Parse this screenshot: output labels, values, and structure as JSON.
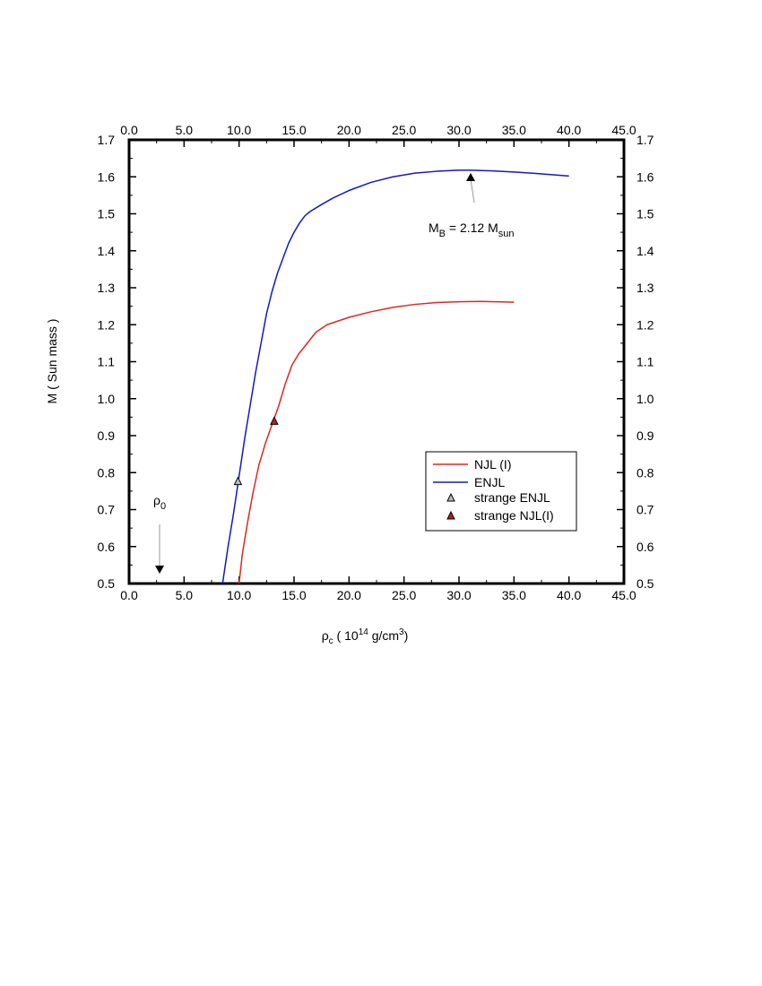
{
  "chart_data": {
    "type": "line",
    "xlabel": {
      "main": "ρ",
      "sub": "c",
      "rest": " ( 10",
      "sup": "14",
      "unit": " g/cm",
      "sup2": "3",
      "close": ")"
    },
    "ylabel": "M ( Sun mass )",
    "xlim": [
      0,
      45
    ],
    "ylim": [
      0.5,
      1.7
    ],
    "x_ticks": [
      "0.0",
      "5.0",
      "10.0",
      "15.0",
      "20.0",
      "25.0",
      "30.0",
      "35.0",
      "40.0",
      "45.0"
    ],
    "y_ticks": [
      "0.5",
      "0.6",
      "0.7",
      "0.8",
      "0.9",
      "1.0",
      "1.1",
      "1.2",
      "1.3",
      "1.4",
      "1.5",
      "1.6",
      "1.7"
    ],
    "grid": false,
    "legend_position": "lower-right",
    "series": [
      {
        "name": "NJL (I)",
        "color": "#e8231e",
        "x": [
          10.0,
          10.3,
          10.8,
          11.3,
          11.8,
          12.4,
          13.0,
          13.6,
          14.2,
          14.8,
          15.4,
          16.2,
          17.0,
          18.0,
          19.0,
          20.0,
          22.0,
          24.0,
          26.0,
          28.0,
          30.0,
          32.0,
          35.0
        ],
        "y": [
          0.5,
          0.58,
          0.67,
          0.75,
          0.82,
          0.88,
          0.93,
          0.98,
          1.04,
          1.09,
          1.12,
          1.15,
          1.18,
          1.2,
          1.21,
          1.22,
          1.235,
          1.247,
          1.255,
          1.26,
          1.262,
          1.263,
          1.261
        ]
      },
      {
        "name": "ENJL",
        "color": "#1515d4",
        "x": [
          8.5,
          9.0,
          9.5,
          10.0,
          10.5,
          11.0,
          11.5,
          12.0,
          12.5,
          13.0,
          13.5,
          14.0,
          14.5,
          15.0,
          15.5,
          16.0,
          16.5,
          17.5,
          18.5,
          20.0,
          22.0,
          24.0,
          26.0,
          28.0,
          30.0,
          31.0,
          33.0,
          35.0,
          37.0,
          40.0
        ],
        "y": [
          0.5,
          0.6,
          0.69,
          0.79,
          0.89,
          0.98,
          1.07,
          1.15,
          1.23,
          1.29,
          1.34,
          1.38,
          1.42,
          1.45,
          1.475,
          1.495,
          1.507,
          1.525,
          1.542,
          1.563,
          1.585,
          1.6,
          1.61,
          1.615,
          1.618,
          1.618,
          1.616,
          1.613,
          1.609,
          1.602
        ]
      }
    ],
    "markers": [
      {
        "name": "strange ENJL",
        "x": 9.9,
        "y": 0.775,
        "fill": "#bdbdbd"
      },
      {
        "name": "strange NJL(I)",
        "x": 13.2,
        "y": 0.938,
        "fill": "#c0191e"
      }
    ],
    "annotations": [
      {
        "id": "mb",
        "main": "M",
        "sub": "B",
        "mid": " = 2.12 M",
        "sub2": "sun",
        "x": 31.0,
        "y": 1.6
      },
      {
        "id": "rho0",
        "main": "ρ",
        "sub": "0",
        "x": 2.8,
        "y": 0.515
      }
    ]
  }
}
